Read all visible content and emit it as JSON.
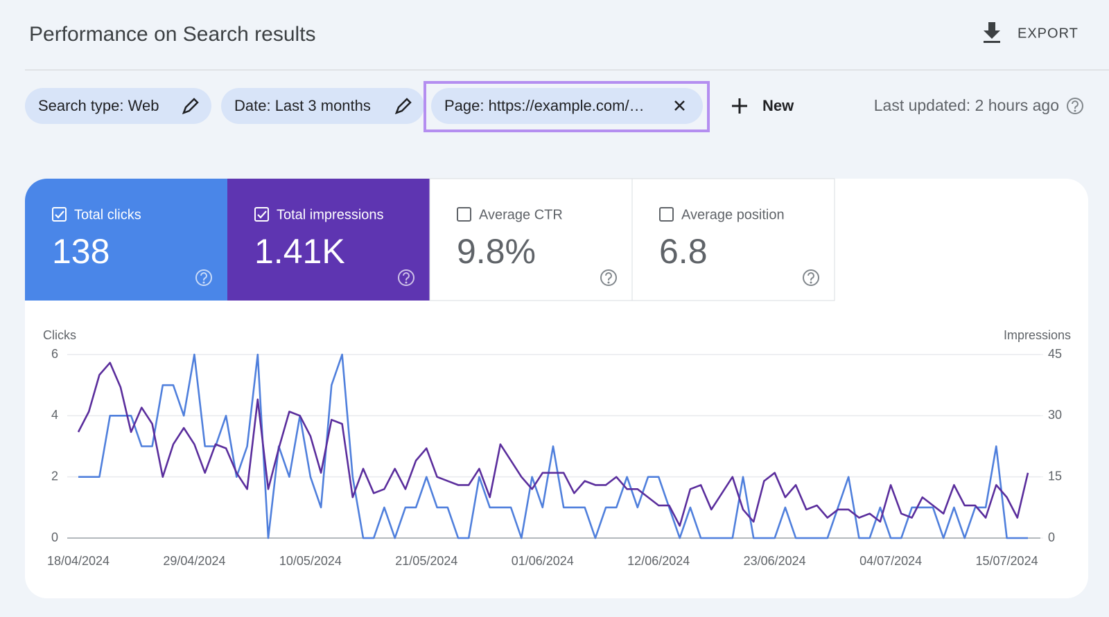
{
  "header": {
    "title": "Performance on Search results",
    "export": "EXPORT"
  },
  "filters": [
    {
      "label": "Search type: Web"
    },
    {
      "label": "Date: Last 3 months"
    },
    {
      "label": "Page: https://example.com/…"
    }
  ],
  "new_button": "New",
  "last_updated": "Last updated: 2 hours ago",
  "metrics": [
    {
      "label": "Total clicks",
      "value": "138",
      "checked": true,
      "color": "#4a86e8"
    },
    {
      "label": "Total impressions",
      "value": "1.41K",
      "checked": true,
      "color": "#5e35b1"
    },
    {
      "label": "Average CTR",
      "value": "9.8%",
      "checked": false,
      "color": "#ffffff"
    },
    {
      "label": "Average position",
      "value": "6.8",
      "checked": false,
      "color": "#ffffff"
    }
  ],
  "chart_data": {
    "type": "line",
    "categories": [
      "18/04/2024",
      null,
      null,
      null,
      null,
      null,
      null,
      null,
      null,
      null,
      null,
      "29/04/2024",
      null,
      null,
      null,
      null,
      null,
      null,
      null,
      null,
      null,
      null,
      "10/05/2024",
      null,
      null,
      null,
      null,
      null,
      null,
      null,
      null,
      null,
      null,
      "21/05/2024",
      null,
      null,
      null,
      null,
      null,
      null,
      null,
      null,
      null,
      null,
      "01/06/2024",
      null,
      null,
      null,
      null,
      null,
      null,
      null,
      null,
      null,
      null,
      "12/06/2024",
      null,
      null,
      null,
      null,
      null,
      null,
      null,
      null,
      null,
      null,
      "23/06/2024",
      null,
      null,
      null,
      null,
      null,
      null,
      null,
      null,
      null,
      null,
      "04/07/2024",
      null,
      null,
      null,
      null,
      null,
      null,
      null,
      null,
      null,
      null,
      "15/07/2024",
      null,
      null
    ],
    "series": [
      {
        "name": "Clicks",
        "color": "#4f7fdc",
        "values": [
          2,
          2,
          2,
          4,
          4,
          4,
          3,
          3,
          5,
          5,
          4,
          6,
          3,
          3,
          4,
          2,
          3,
          6,
          0,
          3,
          2,
          4,
          2,
          1,
          5,
          6,
          2,
          0,
          0,
          1,
          0,
          1,
          1,
          2,
          1,
          1,
          0,
          0,
          2,
          1,
          1,
          1,
          0,
          2,
          1,
          3,
          1,
          1,
          1,
          0,
          1,
          1,
          2,
          1,
          2,
          2,
          1,
          0,
          1,
          0,
          0,
          0,
          0,
          2,
          0,
          0,
          0,
          1,
          0,
          0,
          0,
          0,
          1,
          2,
          0,
          0,
          1,
          0,
          0,
          1,
          1,
          1,
          0,
          1,
          0,
          1,
          1,
          3,
          0,
          0,
          0
        ]
      },
      {
        "name": "Impressions",
        "color": "#5a2d9c",
        "axis": "y2",
        "values": [
          26,
          31,
          40,
          43,
          37,
          26,
          32,
          28,
          15,
          23,
          27,
          23,
          16,
          23,
          22,
          16,
          12,
          34,
          12,
          22,
          31,
          30,
          25,
          16,
          29,
          28,
          10,
          17,
          11,
          12,
          17,
          12,
          19,
          22,
          15,
          14,
          13,
          13,
          17,
          10,
          23,
          19,
          15,
          12,
          16,
          16,
          16,
          11,
          14,
          13,
          13,
          15,
          12,
          12,
          10,
          8,
          8,
          3,
          12,
          13,
          7,
          11,
          15,
          7,
          4,
          14,
          16,
          10,
          13,
          7,
          8,
          5,
          7,
          7,
          5,
          6,
          4,
          13,
          6,
          5,
          10,
          8,
          6,
          13,
          8,
          8,
          5,
          13,
          10,
          5,
          16
        ]
      }
    ],
    "ylim": [
      0,
      6
    ],
    "yticks": [
      0,
      2,
      4,
      6
    ],
    "y2lim": [
      0,
      45
    ],
    "y2ticks": [
      0,
      15,
      30,
      45
    ],
    "grid": true
  }
}
